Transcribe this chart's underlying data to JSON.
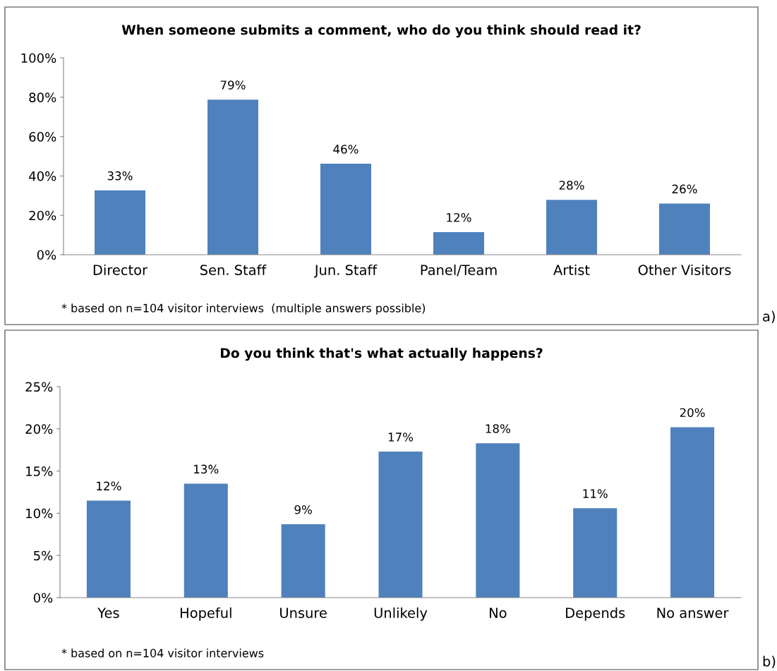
{
  "chart_data": [
    {
      "type": "bar",
      "title": "When someone submits a comment, who do you think should read it?",
      "categories": [
        "Director",
        "Sen. Staff",
        "Jun. Staff",
        "Panel/Team",
        "Artist",
        "Other Visitors"
      ],
      "values": [
        32.7,
        78.8,
        46.2,
        11.5,
        27.9,
        26.0
      ],
      "value_labels": [
        "33%",
        "79%",
        "46%",
        "12%",
        "28%",
        "26%"
      ],
      "color": "#4f81bd",
      "ylim": [
        0,
        100
      ],
      "yticks": [
        {
          "value": 0,
          "label": "0%"
        },
        {
          "value": 20,
          "label": "20%"
        },
        {
          "value": 40,
          "label": "40%"
        },
        {
          "value": 60,
          "label": "60%"
        },
        {
          "value": 80,
          "label": "80%"
        },
        {
          "value": 100,
          "label": "100%"
        }
      ],
      "grid": false,
      "legend": false,
      "annotations": [
        "* based on n=104 visitor interviews  (multiple answers possible)",
        "a)"
      ]
    },
    {
      "type": "bar",
      "title": "Do you think that's what actually happens?",
      "categories": [
        "Yes",
        "Hopeful",
        "Unsure",
        "Unlikely",
        "No",
        "Depends",
        "No answer"
      ],
      "values": [
        11.5,
        13.5,
        8.7,
        17.3,
        18.3,
        10.6,
        20.2
      ],
      "value_labels": [
        "12%",
        "13%",
        "9%",
        "17%",
        "18%",
        "11%",
        "20%"
      ],
      "color": "#4f81bd",
      "ylim": [
        0,
        25
      ],
      "yticks": [
        {
          "value": 0,
          "label": "0%"
        },
        {
          "value": 5,
          "label": "5%"
        },
        {
          "value": 10,
          "label": "10%"
        },
        {
          "value": 15,
          "label": "15%"
        },
        {
          "value": 20,
          "label": "20%"
        },
        {
          "value": 25,
          "label": "25%"
        }
      ],
      "grid": false,
      "legend": false,
      "annotations": [
        "* based on n=104 visitor interviews",
        "b)"
      ]
    }
  ]
}
